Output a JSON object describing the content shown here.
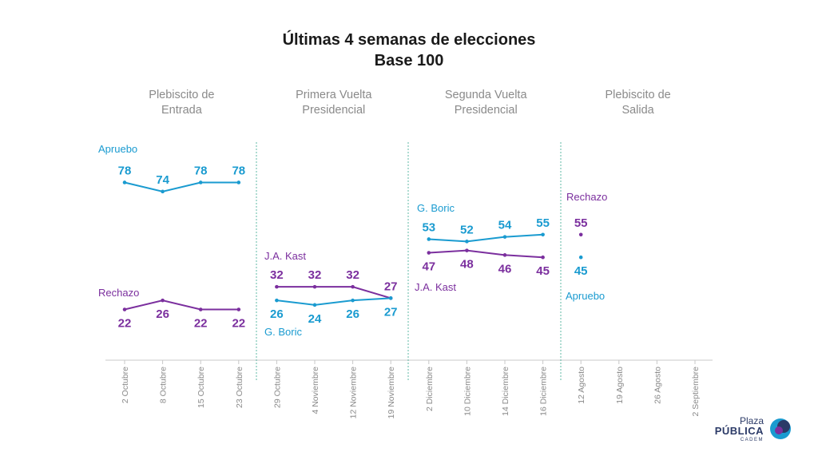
{
  "chart_data": {
    "type": "line",
    "title": "Últimas 4 semanas de elecciones",
    "subtitle": "Base 100",
    "sections": [
      {
        "label_lines": [
          "Plebiscito de",
          "Entrada"
        ],
        "dates": [
          "2 Octubre",
          "8 Octubre",
          "15 Octubre",
          "23 Octubre"
        ],
        "series": [
          {
            "name": "Apruebo",
            "color": "#1a9bd0",
            "values": [
              78,
              74,
              78,
              78
            ]
          },
          {
            "name": "Rechazo",
            "color": "#7b2f9e",
            "values": [
              22,
              26,
              22,
              22
            ]
          }
        ]
      },
      {
        "label_lines": [
          "Primera Vuelta",
          "Presidencial"
        ],
        "dates": [
          "29 Octubre",
          "4 Noviembre",
          "12 Noviembre",
          "19 Noviembre"
        ],
        "series": [
          {
            "name": "J.A. Kast",
            "color": "#7b2f9e",
            "values": [
              32,
              32,
              32,
              27
            ]
          },
          {
            "name": "G. Boric",
            "color": "#1a9bd0",
            "values": [
              26,
              24,
              26,
              27
            ]
          }
        ]
      },
      {
        "label_lines": [
          "Segunda Vuelta",
          "Presidencial"
        ],
        "dates": [
          "2 Diciembre",
          "10 Diciembre",
          "14 Diciembre",
          "16 Diciembre"
        ],
        "series": [
          {
            "name": "G. Boric",
            "color": "#1a9bd0",
            "values": [
              53,
              52,
              54,
              55
            ]
          },
          {
            "name": "J.A. Kast",
            "color": "#7b2f9e",
            "values": [
              47,
              48,
              46,
              45
            ]
          }
        ]
      },
      {
        "label_lines": [
          "Plebiscito de",
          "Salida"
        ],
        "dates": [
          "12 Agosto",
          "19 Agosto",
          "26 Agosto",
          "2 Septiembre"
        ],
        "series": [
          {
            "name": "Rechazo",
            "color": "#7b2f9e",
            "values": [
              55,
              null,
              null,
              null
            ]
          },
          {
            "name": "Apruebo",
            "color": "#1a9bd0",
            "values": [
              45,
              null,
              null,
              null
            ]
          }
        ]
      }
    ]
  },
  "logo": {
    "line1": "Plaza",
    "line2": "PÚBLICA",
    "line3": "CADEM",
    "colors": {
      "dark": "#2b3a67",
      "blue": "#1a9bd0",
      "purple": "#7b2f9e"
    }
  }
}
